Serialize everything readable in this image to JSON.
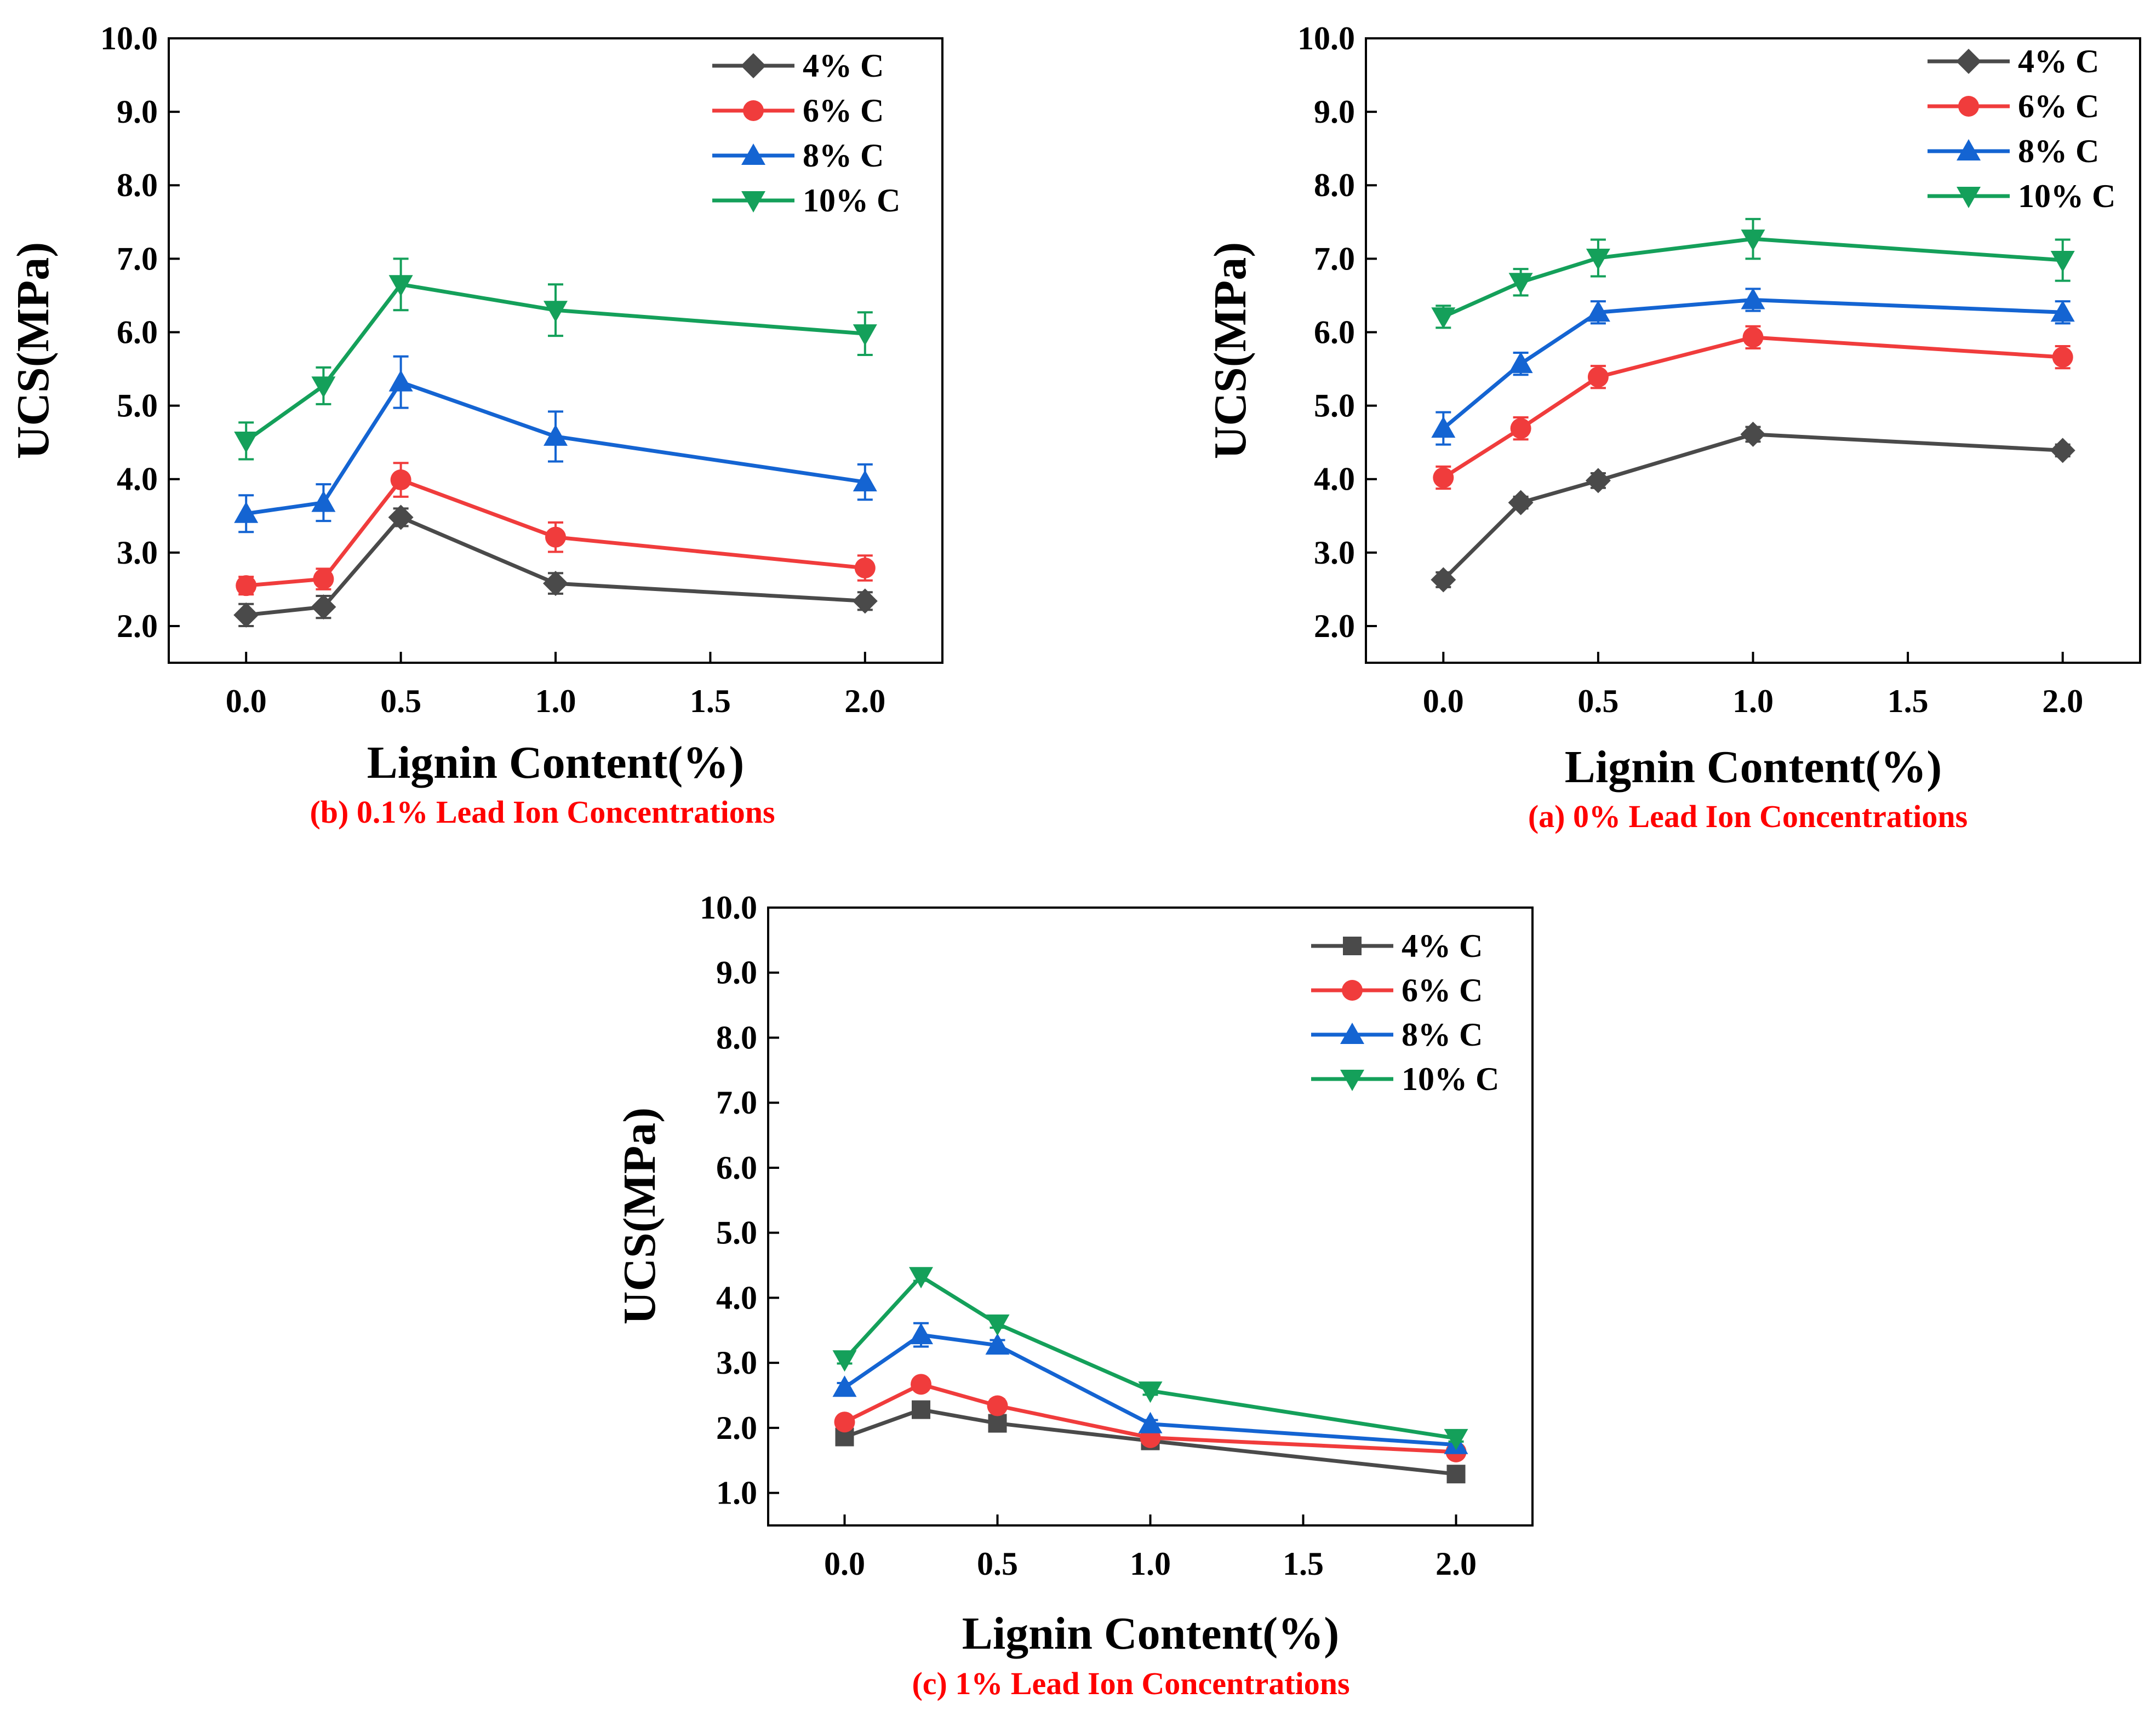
{
  "figure": {
    "colors": {
      "4% C": "#4a4a4a",
      "6% C": "#f03c3c",
      "8% C": "#1464d2",
      "10% C": "#14a05a",
      "caption": "#ff0000",
      "axes": "#000000"
    }
  },
  "chart_data": [
    {
      "id": "b",
      "type": "line",
      "title": "(b) 0.1% Lead Ion Concentrations",
      "xlabel": "Lignin Content(%)",
      "ylabel": "UCS(MPa)",
      "x": [
        0.0,
        0.25,
        0.5,
        1.0,
        2.0
      ],
      "xlim": [
        -0.25,
        2.25
      ],
      "ylim": [
        1.5,
        10.0
      ],
      "xticks": [
        "0.0",
        "0.5",
        "1.0",
        "1.5",
        "2.0"
      ],
      "yticks": [
        "2.0",
        "3.0",
        "4.0",
        "5.0",
        "6.0",
        "7.0",
        "8.0",
        "9.0",
        "10.0"
      ],
      "legend_position": "top-right",
      "series": [
        {
          "name": "4% C",
          "marker": "diamond",
          "values": [
            2.15,
            2.26,
            3.48,
            2.58,
            2.34
          ],
          "errors": [
            0.15,
            0.15,
            0.12,
            0.14,
            0.12
          ]
        },
        {
          "name": "6% C",
          "marker": "circle",
          "values": [
            2.55,
            2.64,
            3.99,
            3.21,
            2.79
          ],
          "errors": [
            0.12,
            0.14,
            0.23,
            0.2,
            0.17
          ]
        },
        {
          "name": "8% C",
          "marker": "triangle-up",
          "values": [
            3.53,
            3.68,
            5.32,
            4.58,
            3.96
          ],
          "errors": [
            0.25,
            0.25,
            0.35,
            0.34,
            0.24
          ]
        },
        {
          "name": "10% C",
          "marker": "triangle-down",
          "values": [
            4.52,
            5.27,
            6.65,
            6.3,
            5.98
          ],
          "errors": [
            0.25,
            0.25,
            0.35,
            0.35,
            0.29
          ]
        }
      ]
    },
    {
      "id": "a",
      "type": "line",
      "title": "(a) 0% Lead Ion Concentrations",
      "xlabel": "Lignin Content(%)",
      "ylabel": "UCS(MPa)",
      "x": [
        0.0,
        0.25,
        0.5,
        1.0,
        2.0
      ],
      "xlim": [
        -0.25,
        2.25
      ],
      "ylim": [
        1.5,
        10.0
      ],
      "xticks": [
        "0.0",
        "0.5",
        "1.0",
        "1.5",
        "2.0"
      ],
      "yticks": [
        "2.0",
        "3.0",
        "4.0",
        "5.0",
        "6.0",
        "7.0",
        "8.0",
        "9.0",
        "10.0"
      ],
      "legend_position": "top-right",
      "series": [
        {
          "name": "4% C",
          "marker": "diamond",
          "values": [
            2.63,
            3.68,
            3.98,
            4.61,
            4.39
          ],
          "errors": [
            0.1,
            0.08,
            0.1,
            0.1,
            0.08
          ]
        },
        {
          "name": "6% C",
          "marker": "circle",
          "values": [
            4.02,
            4.69,
            5.39,
            5.93,
            5.66
          ],
          "errors": [
            0.15,
            0.15,
            0.15,
            0.15,
            0.15
          ]
        },
        {
          "name": "8% C",
          "marker": "triangle-up",
          "values": [
            4.69,
            5.57,
            6.27,
            6.44,
            6.27
          ],
          "errors": [
            0.22,
            0.15,
            0.15,
            0.15,
            0.15
          ]
        },
        {
          "name": "10% C",
          "marker": "triangle-down",
          "values": [
            6.21,
            6.68,
            7.01,
            7.27,
            6.98
          ],
          "errors": [
            0.15,
            0.18,
            0.25,
            0.27,
            0.28
          ]
        }
      ]
    },
    {
      "id": "c",
      "type": "line",
      "title": "(c) 1% Lead Ion Concentrations",
      "xlabel": "Lignin Content(%)",
      "ylabel": "UCS(MPa)",
      "x": [
        0.0,
        0.25,
        0.5,
        1.0,
        2.0
      ],
      "xlim": [
        -0.25,
        2.25
      ],
      "ylim": [
        0.5,
        10.0
      ],
      "xticks": [
        "0.0",
        "0.5",
        "1.0",
        "1.5",
        "2.0"
      ],
      "yticks": [
        "1.0",
        "2.0",
        "3.0",
        "4.0",
        "5.0",
        "6.0",
        "7.0",
        "8.0",
        "9.0",
        "10.0"
      ],
      "legend_position": "top-right",
      "series": [
        {
          "name": "4% C",
          "marker": "square",
          "values": [
            1.86,
            2.28,
            2.07,
            1.8,
            1.29
          ],
          "errors": [
            0.05,
            0.07,
            0.07,
            0.06,
            0.05
          ]
        },
        {
          "name": "6% C",
          "marker": "circle",
          "values": [
            2.09,
            2.67,
            2.34,
            1.85,
            1.63
          ],
          "errors": [
            0.06,
            0.07,
            0.1,
            0.06,
            0.05
          ]
        },
        {
          "name": "8% C",
          "marker": "triangle-up",
          "values": [
            2.62,
            3.43,
            3.27,
            2.06,
            1.74
          ],
          "errors": [
            0.07,
            0.18,
            0.08,
            0.06,
            0.05
          ]
        },
        {
          "name": "10% C",
          "marker": "triangle-down",
          "values": [
            3.05,
            4.33,
            3.6,
            2.57,
            1.84
          ],
          "errors": [
            0.06,
            0.07,
            0.06,
            0.06,
            0.05
          ]
        }
      ]
    }
  ]
}
